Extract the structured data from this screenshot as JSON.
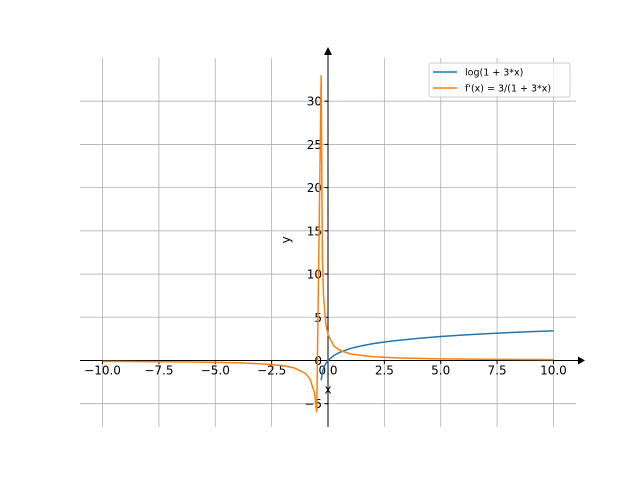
{
  "chart_data": {
    "type": "line",
    "xlabel": "x",
    "ylabel": "y",
    "xlim": [
      -11,
      11
    ],
    "ylim": [
      -7.7,
      35
    ],
    "xticks": [
      {
        "value": -10,
        "label": "−10.0"
      },
      {
        "value": -7.5,
        "label": "−7.5"
      },
      {
        "value": -5,
        "label": "−5.0"
      },
      {
        "value": -2.5,
        "label": "−2.5"
      },
      {
        "value": 0,
        "label": "0.0"
      },
      2.5,
      {
        "value": 5,
        "label": "5.0"
      },
      7.5,
      {
        "value": 10,
        "label": "10.0"
      }
    ],
    "yticks": [
      {
        "value": -5,
        "label": "−5"
      },
      0,
      5,
      10,
      15,
      20,
      25,
      30
    ],
    "grid": true,
    "legend": "upper right",
    "series": [
      {
        "name": "log(1 + 3*x)",
        "color": "#1f77b4",
        "x": [
          -0.3,
          -0.25,
          -0.2,
          -0.1,
          0,
          0.25,
          0.5,
          1,
          1.5,
          2,
          2.5,
          3,
          4,
          5,
          6,
          7,
          8,
          9,
          10
        ],
        "values": [
          -2.3,
          -1.39,
          -0.92,
          -0.36,
          0,
          0.56,
          0.92,
          1.39,
          1.7,
          1.95,
          2.14,
          2.3,
          2.56,
          2.77,
          2.94,
          3.09,
          3.22,
          3.33,
          3.43
        ]
      },
      {
        "name": "f'(x) = 3/(1 + 3*x)",
        "color": "#ff7f0e",
        "x": [
          -10,
          -8,
          -6,
          -4,
          -3,
          -2,
          -1.5,
          -1,
          -0.8,
          -0.6,
          -0.5,
          -0.303,
          -0.25,
          -0.2,
          -0.1,
          0,
          0.25,
          0.5,
          1,
          2,
          3,
          5,
          7,
          10
        ],
        "values": [
          -0.1,
          -0.13,
          -0.18,
          -0.27,
          -0.375,
          -0.6,
          -0.86,
          -1.5,
          -2.14,
          -3.75,
          -6,
          33,
          12,
          7.5,
          4.29,
          3,
          1.71,
          1.2,
          0.75,
          0.43,
          0.3,
          0.19,
          0.14,
          0.1
        ]
      }
    ]
  }
}
